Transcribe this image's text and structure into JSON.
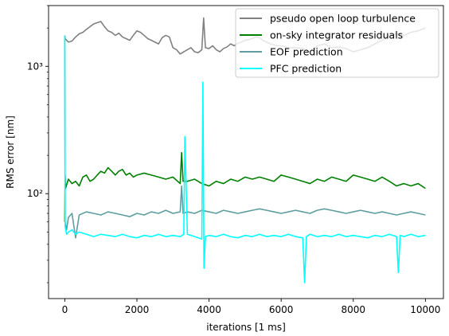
{
  "chart_data": {
    "type": "line",
    "title": "",
    "xlabel": "iterations [1 ms]",
    "ylabel": "RMS error [nm]",
    "xlim": [
      -450,
      10500
    ],
    "ylim": [
      15,
      3000
    ],
    "yscale": "log",
    "x_ticks": [
      0,
      2000,
      4000,
      6000,
      8000,
      10000
    ],
    "x_tick_labels": [
      "0",
      "2000",
      "4000",
      "6000",
      "8000",
      "10000"
    ],
    "y_ticks": [
      100,
      1000
    ],
    "y_tick_labels": [
      "10²",
      "10³"
    ],
    "grid": false,
    "legend_position": "top-right",
    "series": [
      {
        "name": "pseudo open loop turbulence",
        "color": "#808080",
        "x": [
          0,
          10,
          100,
          200,
          300,
          400,
          500,
          600,
          700,
          800,
          900,
          1000,
          1100,
          1200,
          1300,
          1400,
          1500,
          1600,
          1700,
          1800,
          1900,
          2000,
          2100,
          2200,
          2300,
          2400,
          2500,
          2600,
          2700,
          2800,
          2900,
          3000,
          3100,
          3200,
          3300,
          3400,
          3500,
          3600,
          3700,
          3800,
          3850,
          3900,
          4000,
          4100,
          4200,
          4300,
          4400,
          4500,
          4600,
          4700,
          4800,
          4900,
          5000,
          5100,
          5200,
          5300,
          5400,
          5500,
          5600,
          5700,
          5800,
          5900,
          6000,
          6200,
          6400,
          6600,
          6800,
          7000,
          7200,
          7400,
          7600,
          7800,
          8000,
          8200,
          8400,
          8600,
          8800,
          9000,
          9200,
          9400,
          9600,
          9800,
          10000
        ],
        "values": [
          1750,
          1650,
          1550,
          1580,
          1700,
          1800,
          1850,
          1950,
          2050,
          2150,
          2200,
          2250,
          2050,
          1900,
          1850,
          1750,
          1820,
          1700,
          1650,
          1600,
          1750,
          1900,
          1850,
          1750,
          1650,
          1600,
          1550,
          1500,
          1680,
          1750,
          1700,
          1400,
          1350,
          1250,
          1300,
          1350,
          1400,
          1300,
          1280,
          1350,
          2400,
          1400,
          1380,
          1450,
          1350,
          1300,
          1380,
          1420,
          1500,
          1450,
          1520,
          1550,
          1600,
          1620,
          1650,
          1700,
          1680,
          1600,
          1550,
          1500,
          1480,
          1450,
          1450,
          1400,
          1400,
          1380,
          1300,
          1450,
          1500,
          1400,
          1420,
          1380,
          1300,
          1350,
          1400,
          1500,
          1600,
          1750,
          1800,
          1750,
          1850,
          1900,
          2000
        ]
      },
      {
        "name": "on-sky integrator residuals",
        "color": "#008000",
        "x": [
          0,
          10,
          20,
          100,
          200,
          300,
          400,
          500,
          600,
          700,
          800,
          900,
          1000,
          1100,
          1200,
          1300,
          1400,
          1500,
          1600,
          1700,
          1800,
          1900,
          2000,
          2200,
          2400,
          2600,
          2800,
          3000,
          3200,
          3240,
          3280,
          3400,
          3600,
          3800,
          4000,
          4200,
          4400,
          4600,
          4800,
          5000,
          5200,
          5400,
          5600,
          5800,
          6000,
          6200,
          6400,
          6600,
          6800,
          7000,
          7200,
          7400,
          7600,
          7800,
          8000,
          8200,
          8400,
          8600,
          8800,
          9000,
          9200,
          9400,
          9600,
          9800,
          10000
        ],
        "values": [
          60,
          140,
          110,
          130,
          120,
          125,
          115,
          135,
          140,
          125,
          130,
          140,
          150,
          145,
          160,
          150,
          140,
          150,
          155,
          140,
          145,
          135,
          140,
          145,
          140,
          135,
          130,
          135,
          120,
          210,
          125,
          125,
          130,
          120,
          115,
          125,
          120,
          130,
          125,
          135,
          130,
          135,
          130,
          125,
          140,
          135,
          130,
          125,
          120,
          130,
          125,
          135,
          130,
          125,
          140,
          135,
          130,
          125,
          135,
          125,
          115,
          120,
          115,
          120,
          110
        ]
      },
      {
        "name": "EOF prediction",
        "color": "#5f9ea0",
        "x": [
          0,
          10,
          50,
          100,
          200,
          300,
          400,
          600,
          800,
          1000,
          1200,
          1400,
          1600,
          1800,
          2000,
          2200,
          2400,
          2600,
          2800,
          3000,
          3200,
          3240,
          3280,
          3400,
          3600,
          3800,
          4000,
          4200,
          4400,
          4600,
          4800,
          5000,
          5200,
          5400,
          5600,
          5800,
          6000,
          6200,
          6400,
          6600,
          6800,
          7000,
          7200,
          7400,
          7600,
          7800,
          8000,
          8200,
          8400,
          8600,
          8800,
          9000,
          9200,
          9400,
          9600,
          9800,
          10000
        ],
        "values": [
          1750,
          60,
          52,
          65,
          70,
          45,
          68,
          72,
          70,
          68,
          72,
          70,
          68,
          66,
          70,
          68,
          72,
          70,
          74,
          70,
          72,
          115,
          70,
          72,
          70,
          74,
          72,
          70,
          74,
          72,
          70,
          72,
          74,
          76,
          74,
          72,
          70,
          72,
          74,
          72,
          70,
          74,
          76,
          74,
          72,
          70,
          72,
          74,
          72,
          70,
          72,
          70,
          68,
          70,
          72,
          70,
          68
        ]
      },
      {
        "name": "PFC prediction",
        "color": "#00ffff",
        "x": [
          0,
          10,
          50,
          100,
          200,
          300,
          400,
          600,
          800,
          1000,
          1200,
          1400,
          1600,
          1800,
          2000,
          2200,
          2400,
          2600,
          2800,
          3000,
          3200,
          3300,
          3330,
          3400,
          3600,
          3800,
          3830,
          3860,
          3900,
          4000,
          4200,
          4400,
          4600,
          4800,
          5000,
          5200,
          5400,
          5600,
          5800,
          6000,
          6200,
          6400,
          6600,
          6650,
          6700,
          6800,
          7000,
          7200,
          7400,
          7600,
          7800,
          8000,
          8200,
          8400,
          8600,
          8800,
          9000,
          9200,
          9250,
          9300,
          9400,
          9600,
          9800,
          10000
        ],
        "values": [
          1750,
          55,
          48,
          50,
          52,
          48,
          50,
          48,
          46,
          48,
          47,
          46,
          48,
          46,
          45,
          47,
          46,
          48,
          46,
          47,
          46,
          48,
          280,
          48,
          46,
          44,
          750,
          26,
          46,
          47,
          46,
          48,
          46,
          45,
          47,
          46,
          48,
          46,
          47,
          46,
          48,
          46,
          45,
          20,
          46,
          48,
          46,
          47,
          46,
          48,
          46,
          47,
          46,
          45,
          47,
          46,
          48,
          46,
          24,
          47,
          46,
          48,
          46,
          47
        ]
      }
    ]
  }
}
